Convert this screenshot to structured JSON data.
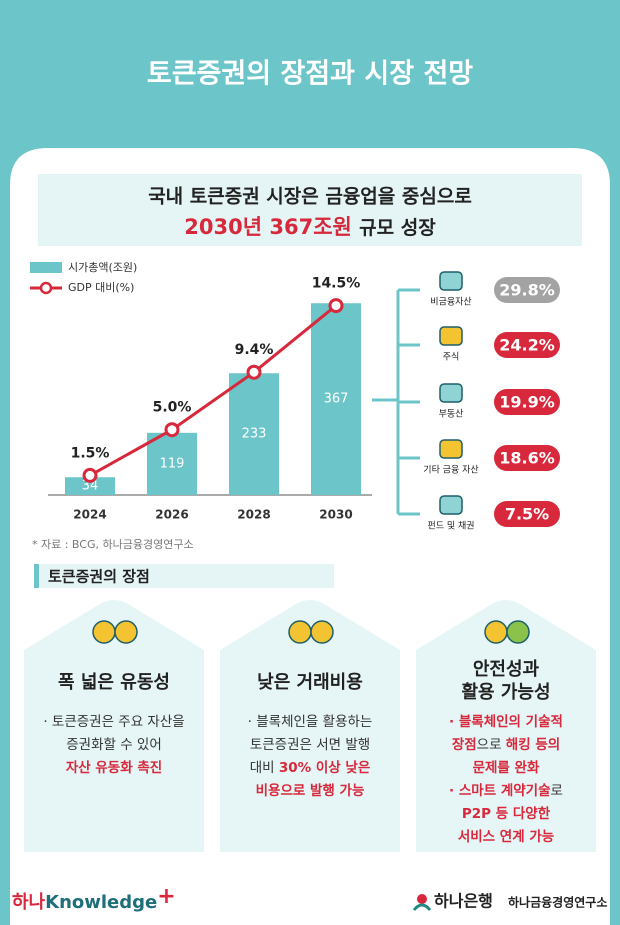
{
  "header": {
    "title": "토큰증권의 장점과 시장 전망"
  },
  "headline": {
    "line1": "국내 토큰증권 시장은 금융업을 중심으로",
    "highlight": "2030년 367조원",
    "rest": "규모 성장"
  },
  "chart_data": [
    {
      "type": "bar",
      "categories": [
        "2024",
        "2026",
        "2028",
        "2030"
      ],
      "series": [
        {
          "name": "시가총액(조원)",
          "type": "bar",
          "color": "#6cc5c8",
          "values": [
            34,
            119,
            233,
            367
          ]
        },
        {
          "name": "GDP 대비(%)",
          "type": "line",
          "axis": "y2",
          "color": "#d7283c",
          "values": [
            1.5,
            5.0,
            9.4,
            14.5
          ],
          "value_labels": [
            "1.5%",
            "5.0%",
            "9.4%",
            "14.5%"
          ]
        }
      ],
      "ylim": [
        0,
        400
      ],
      "y2lim": [
        0,
        16
      ]
    },
    {
      "type": "pill",
      "categories": [
        "비금융자산",
        "주식",
        "부동산",
        "기타 금융 자산",
        "펀드 및 채권"
      ],
      "values": [
        29.8,
        24.2,
        19.9,
        18.6,
        7.5
      ],
      "value_labels": [
        "29.8%",
        "24.2%",
        "19.9%",
        "18.6%",
        "7.5%"
      ],
      "colors": [
        "#a3a3a3",
        "#d7283c",
        "#d7283c",
        "#d7283c",
        "#d7283c"
      ]
    }
  ],
  "source": "* 자료 : BCG, 하나금융경영연구소",
  "section_title": "토큰증권의 장점",
  "cards": [
    {
      "title": [
        "폭 넓은 유동성"
      ],
      "lines": [
        [
          {
            "text": "· 토큰증권은 주요 자산을",
            "em": false
          }
        ],
        [
          {
            "text": "증권화할 수 있어",
            "em": false
          }
        ],
        [
          {
            "text": "자산 유동화 촉진",
            "em": true
          }
        ]
      ]
    },
    {
      "title": [
        "낮은 거래비용"
      ],
      "lines": [
        [
          {
            "text": "· 블록체인을 활용하는",
            "em": false
          }
        ],
        [
          {
            "text": "토큰증권은 서면 발행",
            "em": false
          }
        ],
        [
          {
            "text": "대비 ",
            "em": false
          },
          {
            "text": "30% 이상 낮은",
            "em": true
          }
        ],
        [
          {
            "text": "비용으로 발행 가능",
            "em": true
          }
        ]
      ]
    },
    {
      "title": [
        "안전성과",
        "활용 가능성"
      ],
      "lines": [
        [
          {
            "text": "· 블록체인의 기술적",
            "em": true
          }
        ],
        [
          {
            "text": "장점",
            "em": true
          },
          {
            "text": "으로 ",
            "em": false
          },
          {
            "text": "해킹 등의",
            "em": true
          }
        ],
        [
          {
            "text": "문제를 완화",
            "em": true
          }
        ],
        [
          {
            "text": "· 스마트 계약기술",
            "em": true
          },
          {
            "text": "로",
            "em": false
          }
        ],
        [
          {
            "text": "P2P 등 다양한",
            "em": true
          }
        ],
        [
          {
            "text": "서비스 연계 가능",
            "em": true
          }
        ]
      ]
    }
  ],
  "footer": {
    "brand_prefix": "하나",
    "brand_name": "Knowledge",
    "brand_plus": "+",
    "bank": "하나은행",
    "institute": "하나금융경영연구소"
  }
}
